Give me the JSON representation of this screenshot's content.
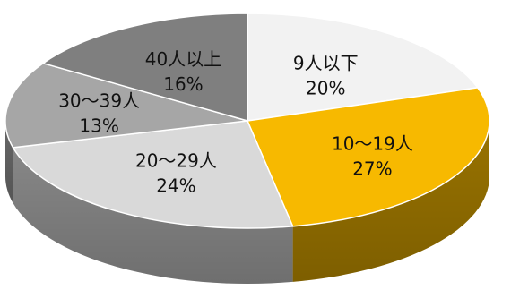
{
  "chart_data": {
    "type": "pie",
    "title": "",
    "style": "3d",
    "slices": [
      {
        "label": "9人以下",
        "value": 20,
        "value_label": "20%",
        "color": "#F2F2F2"
      },
      {
        "label": "10～19人",
        "value": 27,
        "value_label": "27%",
        "color": "#F7B900"
      },
      {
        "label": "20～29人",
        "value": 24,
        "value_label": "24%",
        "color": "#D9D9D9"
      },
      {
        "label": "30～39人",
        "value": 13,
        "value_label": "13%",
        "color": "#A6A6A6"
      },
      {
        "label": "40人以上",
        "value": 16,
        "value_label": "16%",
        "color": "#7F7F7F"
      }
    ]
  }
}
